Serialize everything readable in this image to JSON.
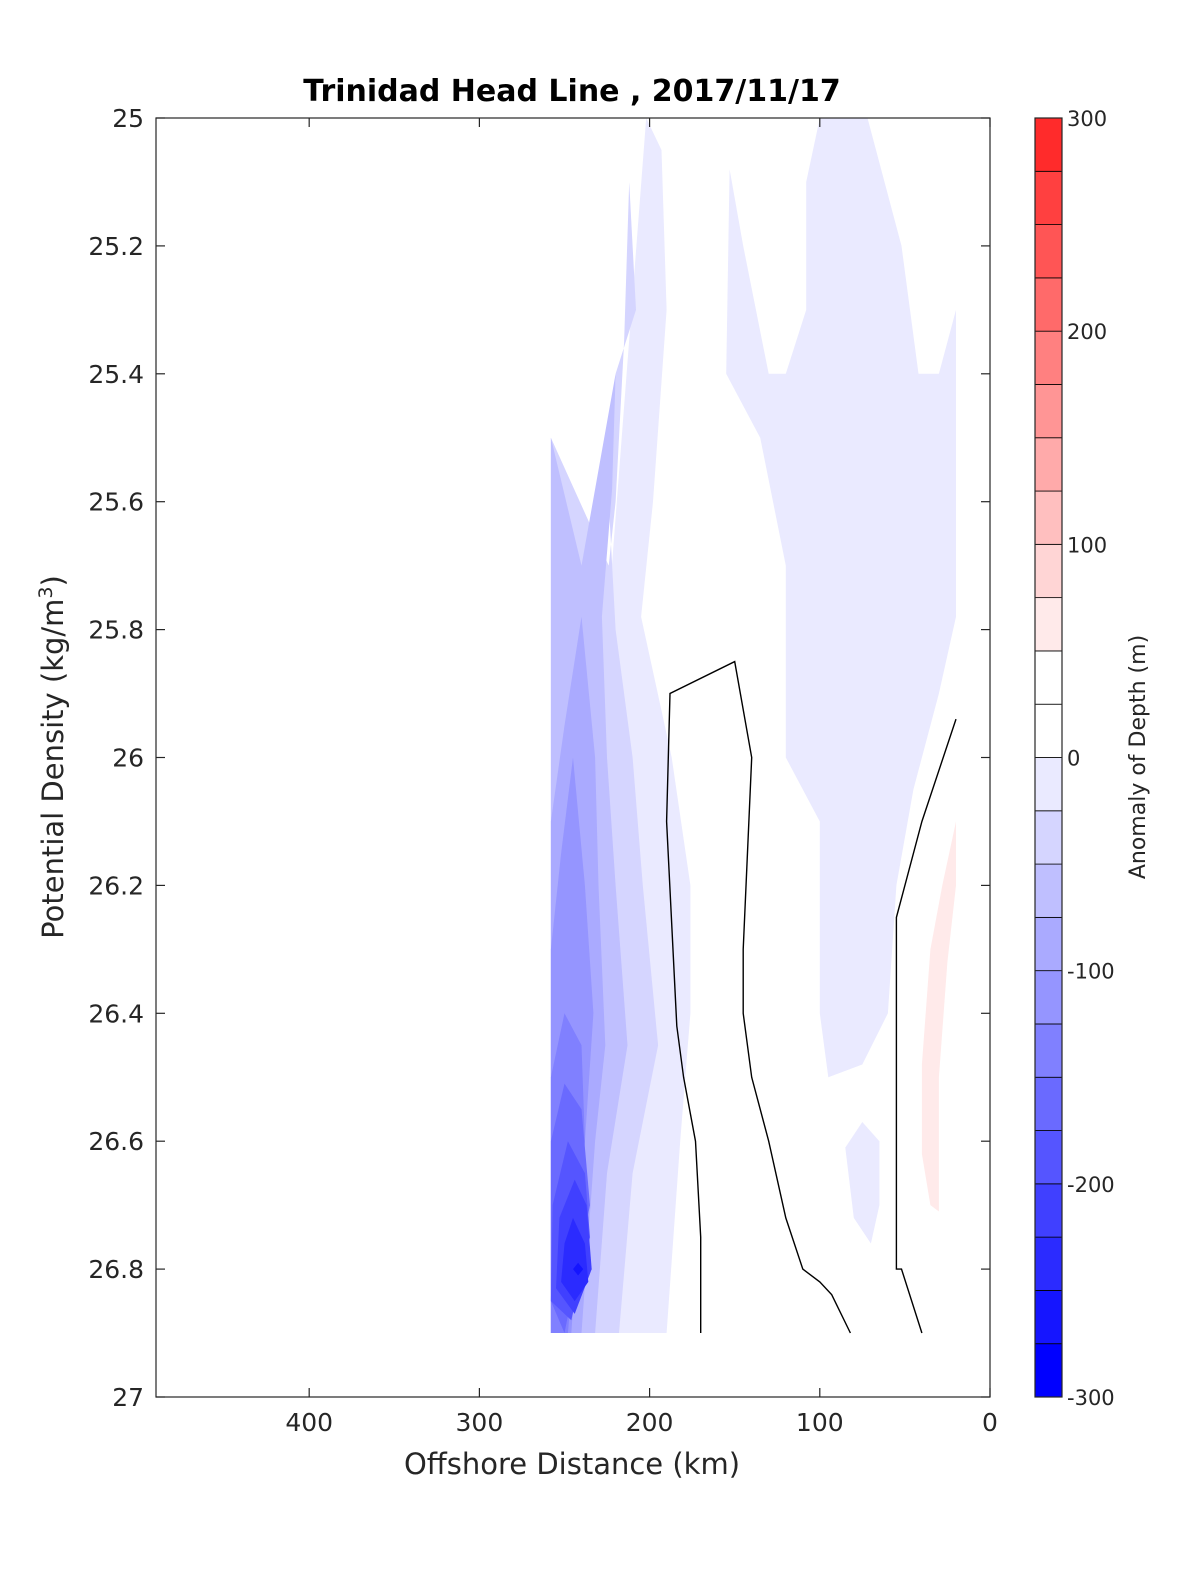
{
  "chart_data": {
    "type": "contour",
    "title": "Trinidad Head Line , 2017/11/17",
    "xlabel": "Offshore Distance (km)",
    "ylabel_main": "Potential Density (kg/m",
    "ylabel_sup": "3",
    "ylabel_close": ")",
    "xlim": [
      490,
      0
    ],
    "x_reversed": true,
    "ylim": [
      25,
      27
    ],
    "y_reversed": true,
    "xticks": [
      400,
      300,
      200,
      100,
      0
    ],
    "xtick_labels": [
      "400",
      "300",
      "200",
      "100",
      "0"
    ],
    "yticks": [
      25,
      25.2,
      25.4,
      25.6,
      25.8,
      26,
      26.2,
      26.4,
      26.6,
      26.8,
      27
    ],
    "ytick_labels": [
      "25",
      "25.2",
      "25.4",
      "25.6",
      "25.8",
      "26",
      "26.2",
      "26.4",
      "26.6",
      "26.8",
      "27"
    ],
    "colorbar": {
      "label": "Anomaly of Depth (m)",
      "range": [
        -300,
        300
      ],
      "step": 25,
      "ticks": [
        300,
        200,
        100,
        0,
        -100,
        -200,
        -300
      ],
      "tick_labels": [
        "300",
        "200",
        "100",
        "0",
        "-100",
        "-200",
        "-300"
      ],
      "colors": [
        "#0000ff",
        "#1515ff",
        "#2b2bff",
        "#4040ff",
        "#5555ff",
        "#6a6aff",
        "#8080ff",
        "#9595ff",
        "#aaaaff",
        "#bfbfff",
        "#d5d5ff",
        "#eaeaff",
        "#ffffff",
        "#ffffff",
        "#ffeaea",
        "#ffd5d5",
        "#ffbfbf",
        "#ffaaaa",
        "#ff9595",
        "#ff8080",
        "#ff6a6a",
        "#ff5555",
        "#ff4040",
        "#ff2b2b",
        "#ff1515",
        "#ff0000"
      ]
    },
    "filled_contours": [
      {
        "level": -25,
        "color": "#eaeaff",
        "points": [
          [
            202,
            25
          ],
          [
            193,
            25.05
          ],
          [
            190,
            25.3
          ],
          [
            198,
            25.6
          ],
          [
            205,
            25.78
          ],
          [
            187,
            26
          ],
          [
            176,
            26.2
          ],
          [
            176,
            26.4
          ],
          [
            182,
            26.6
          ],
          [
            190,
            26.9
          ],
          [
            258,
            26.9
          ],
          [
            258,
            25.5
          ],
          [
            225,
            25.8
          ]
        ]
      },
      {
        "level": -25,
        "color": "#eaeaff",
        "points": [
          [
            100,
            25
          ],
          [
            72,
            25
          ],
          [
            52,
            25.2
          ],
          [
            42,
            25.4
          ],
          [
            30,
            25.4
          ],
          [
            20,
            25.3
          ],
          [
            20,
            25.78
          ],
          [
            30,
            25.9
          ],
          [
            45,
            26.05
          ],
          [
            55,
            26.2
          ],
          [
            60,
            26.4
          ],
          [
            75,
            26.48
          ],
          [
            95,
            26.5
          ],
          [
            100,
            26.4
          ],
          [
            100,
            26.1
          ],
          [
            120,
            26
          ],
          [
            120,
            25.7
          ],
          [
            135,
            25.5
          ],
          [
            155,
            25.4
          ],
          [
            153,
            25.08
          ],
          [
            145,
            25.2
          ],
          [
            130,
            25.4
          ],
          [
            120,
            25.4
          ],
          [
            108,
            25.3
          ],
          [
            108,
            25.1
          ]
        ]
      },
      {
        "level": -25,
        "color": "#eaeaff",
        "points": [
          [
            85,
            26.61
          ],
          [
            75,
            26.57
          ],
          [
            65,
            26.6
          ],
          [
            65,
            26.7
          ],
          [
            70,
            26.76
          ],
          [
            80,
            26.72
          ]
        ]
      },
      {
        "level": -50,
        "color": "#d5d5ff",
        "points": [
          [
            212,
            25.1
          ],
          [
            208,
            25.3
          ],
          [
            220,
            25.4
          ],
          [
            224,
            25.6
          ],
          [
            220,
            25.8
          ],
          [
            210,
            26
          ],
          [
            204,
            26.2
          ],
          [
            195,
            26.45
          ],
          [
            210,
            26.65
          ],
          [
            218,
            26.9
          ],
          [
            258,
            26.9
          ],
          [
            258,
            25.5
          ],
          [
            224,
            25.7
          ],
          [
            220,
            25.6
          ],
          [
            215,
            25.35
          ]
        ]
      },
      {
        "level": -75,
        "color": "#bfbfff",
        "points": [
          [
            220,
            25.4
          ],
          [
            222,
            25.58
          ],
          [
            228,
            25.78
          ],
          [
            225,
            26
          ],
          [
            220,
            26.2
          ],
          [
            213,
            26.45
          ],
          [
            225,
            26.65
          ],
          [
            232,
            26.9
          ],
          [
            258,
            26.9
          ],
          [
            258,
            25.5
          ],
          [
            240,
            25.7
          ]
        ]
      },
      {
        "level": -100,
        "color": "#aaaaff",
        "points": [
          [
            240,
            25.78
          ],
          [
            232,
            26
          ],
          [
            230,
            26.2
          ],
          [
            226,
            26.45
          ],
          [
            232,
            26.6
          ],
          [
            240,
            26.9
          ],
          [
            258,
            26.9
          ],
          [
            258,
            26.1
          ],
          [
            250,
            25.95
          ]
        ]
      },
      {
        "level": -125,
        "color": "#9595ff",
        "points": [
          [
            245,
            26
          ],
          [
            238,
            26.2
          ],
          [
            233,
            26.4
          ],
          [
            238,
            26.6
          ],
          [
            246,
            26.9
          ],
          [
            258,
            26.9
          ],
          [
            258,
            26.3
          ],
          [
            252,
            26.15
          ]
        ]
      },
      {
        "level": -150,
        "color": "#8080ff",
        "points": [
          [
            250,
            26.4
          ],
          [
            240,
            26.45
          ],
          [
            238,
            26.6
          ],
          [
            248,
            26.9
          ],
          [
            258,
            26.9
          ],
          [
            258,
            26.5
          ]
        ]
      },
      {
        "level": -175,
        "color": "#6a6aff",
        "points": [
          [
            250,
            26.51
          ],
          [
            240,
            26.55
          ],
          [
            235,
            26.7
          ],
          [
            250,
            26.9
          ],
          [
            258,
            26.85
          ],
          [
            258,
            26.6
          ]
        ]
      },
      {
        "level": -200,
        "color": "#5555ff",
        "points": [
          [
            248,
            26.6
          ],
          [
            238,
            26.65
          ],
          [
            235,
            26.75
          ],
          [
            246,
            26.88
          ],
          [
            258,
            26.85
          ],
          [
            257,
            26.7
          ]
        ]
      },
      {
        "level": -225,
        "color": "#4040ff",
        "points": [
          [
            244,
            26.66
          ],
          [
            237,
            26.7
          ],
          [
            234,
            26.8
          ],
          [
            244,
            26.87
          ],
          [
            255,
            26.83
          ],
          [
            253,
            26.72
          ]
        ]
      },
      {
        "level": -250,
        "color": "#2b2bff",
        "points": [
          [
            245,
            26.72
          ],
          [
            238,
            26.76
          ],
          [
            236,
            26.82
          ],
          [
            244,
            26.85
          ],
          [
            252,
            26.82
          ],
          [
            250,
            26.76
          ]
        ]
      },
      {
        "level": -275,
        "color": "#1515ff",
        "points": [
          [
            242,
            26.79
          ],
          [
            239,
            26.8
          ],
          [
            242,
            26.81
          ],
          [
            245,
            26.8
          ]
        ]
      },
      {
        "level": 25,
        "color": "#ffeaea",
        "points": [
          [
            20,
            26.1
          ],
          [
            28,
            26.2
          ],
          [
            35,
            26.3
          ],
          [
            40,
            26.48
          ],
          [
            40,
            26.62
          ],
          [
            35,
            26.7
          ],
          [
            30,
            26.71
          ],
          [
            30,
            26.5
          ],
          [
            25,
            26.32
          ],
          [
            20,
            26.2
          ]
        ]
      }
    ],
    "zero_contours": [
      {
        "points": [
          [
            170,
            26.9
          ],
          [
            170,
            26.75
          ],
          [
            173,
            26.6
          ],
          [
            180,
            26.5
          ],
          [
            184,
            26.42
          ],
          [
            190,
            26.1
          ],
          [
            188,
            25.9
          ],
          [
            150,
            25.85
          ],
          [
            140,
            26
          ],
          [
            145,
            26.3
          ],
          [
            145,
            26.4
          ],
          [
            140,
            26.5
          ],
          [
            130,
            26.6
          ],
          [
            120,
            26.72
          ],
          [
            110,
            26.8
          ],
          [
            100,
            26.82
          ],
          [
            93,
            26.84
          ],
          [
            82,
            26.9
          ]
        ]
      },
      {
        "points": [
          [
            20,
            25.94
          ],
          [
            40,
            26.1
          ],
          [
            55,
            26.25
          ],
          [
            55,
            26.8
          ],
          [
            52,
            26.8
          ],
          [
            40,
            26.9
          ]
        ]
      }
    ]
  }
}
